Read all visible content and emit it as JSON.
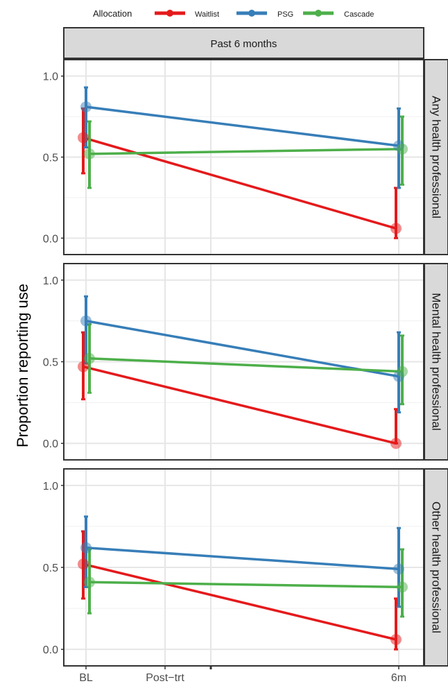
{
  "chart_data": {
    "type": "line",
    "legend": {
      "title": "Allocation",
      "position": "top",
      "entries": [
        {
          "name": "Waitlist",
          "color": "#e41a1c"
        },
        {
          "name": "PSG",
          "color": "#377eb8"
        },
        {
          "name": "Cascade",
          "color": "#4daf4a"
        }
      ]
    },
    "ylabel": "Proportion reporting use",
    "x_tick_labels": [
      "BL",
      "Post−trt",
      "6m"
    ],
    "y_ticks": [
      "0.0",
      "0.5",
      "1.0"
    ],
    "ylim": [
      -0.05,
      1.05
    ],
    "column_strip": "Past 6 months",
    "grid": true,
    "panels": [
      {
        "title": "Any health professional",
        "series": [
          {
            "name": "Waitlist",
            "points": [
              {
                "x": "BL",
                "y": 0.62,
                "lo": 0.4,
                "hi": 0.8
              },
              {
                "x": "6m",
                "y": 0.06,
                "lo": 0.0,
                "hi": 0.31
              }
            ]
          },
          {
            "name": "PSG",
            "points": [
              {
                "x": "BL",
                "y": 0.81,
                "lo": 0.56,
                "hi": 0.93
              },
              {
                "x": "6m",
                "y": 0.57,
                "lo": 0.31,
                "hi": 0.8
              }
            ]
          },
          {
            "name": "Cascade",
            "points": [
              {
                "x": "BL",
                "y": 0.52,
                "lo": 0.31,
                "hi": 0.72
              },
              {
                "x": "6m",
                "y": 0.55,
                "lo": 0.33,
                "hi": 0.75
              }
            ]
          }
        ]
      },
      {
        "title": "Mental health professional",
        "series": [
          {
            "name": "Waitlist",
            "points": [
              {
                "x": "BL",
                "y": 0.47,
                "lo": 0.27,
                "hi": 0.68
              },
              {
                "x": "6m",
                "y": 0.0,
                "lo": 0.0,
                "hi": 0.21
              }
            ]
          },
          {
            "name": "PSG",
            "points": [
              {
                "x": "BL",
                "y": 0.75,
                "lo": 0.49,
                "hi": 0.9
              },
              {
                "x": "6m",
                "y": 0.41,
                "lo": 0.19,
                "hi": 0.68
              }
            ]
          },
          {
            "name": "Cascade",
            "points": [
              {
                "x": "BL",
                "y": 0.52,
                "lo": 0.31,
                "hi": 0.73
              },
              {
                "x": "6m",
                "y": 0.44,
                "lo": 0.24,
                "hi": 0.66
              }
            ]
          }
        ]
      },
      {
        "title": "Other health professional",
        "series": [
          {
            "name": "Waitlist",
            "points": [
              {
                "x": "BL",
                "y": 0.52,
                "lo": 0.31,
                "hi": 0.72
              },
              {
                "x": "6m",
                "y": 0.06,
                "lo": 0.0,
                "hi": 0.31
              }
            ]
          },
          {
            "name": "PSG",
            "points": [
              {
                "x": "BL",
                "y": 0.62,
                "lo": 0.38,
                "hi": 0.81
              },
              {
                "x": "6m",
                "y": 0.49,
                "lo": 0.26,
                "hi": 0.74
              }
            ]
          },
          {
            "name": "Cascade",
            "points": [
              {
                "x": "BL",
                "y": 0.41,
                "lo": 0.22,
                "hi": 0.61
              },
              {
                "x": "6m",
                "y": 0.38,
                "lo": 0.2,
                "hi": 0.61
              }
            ]
          }
        ]
      }
    ]
  }
}
